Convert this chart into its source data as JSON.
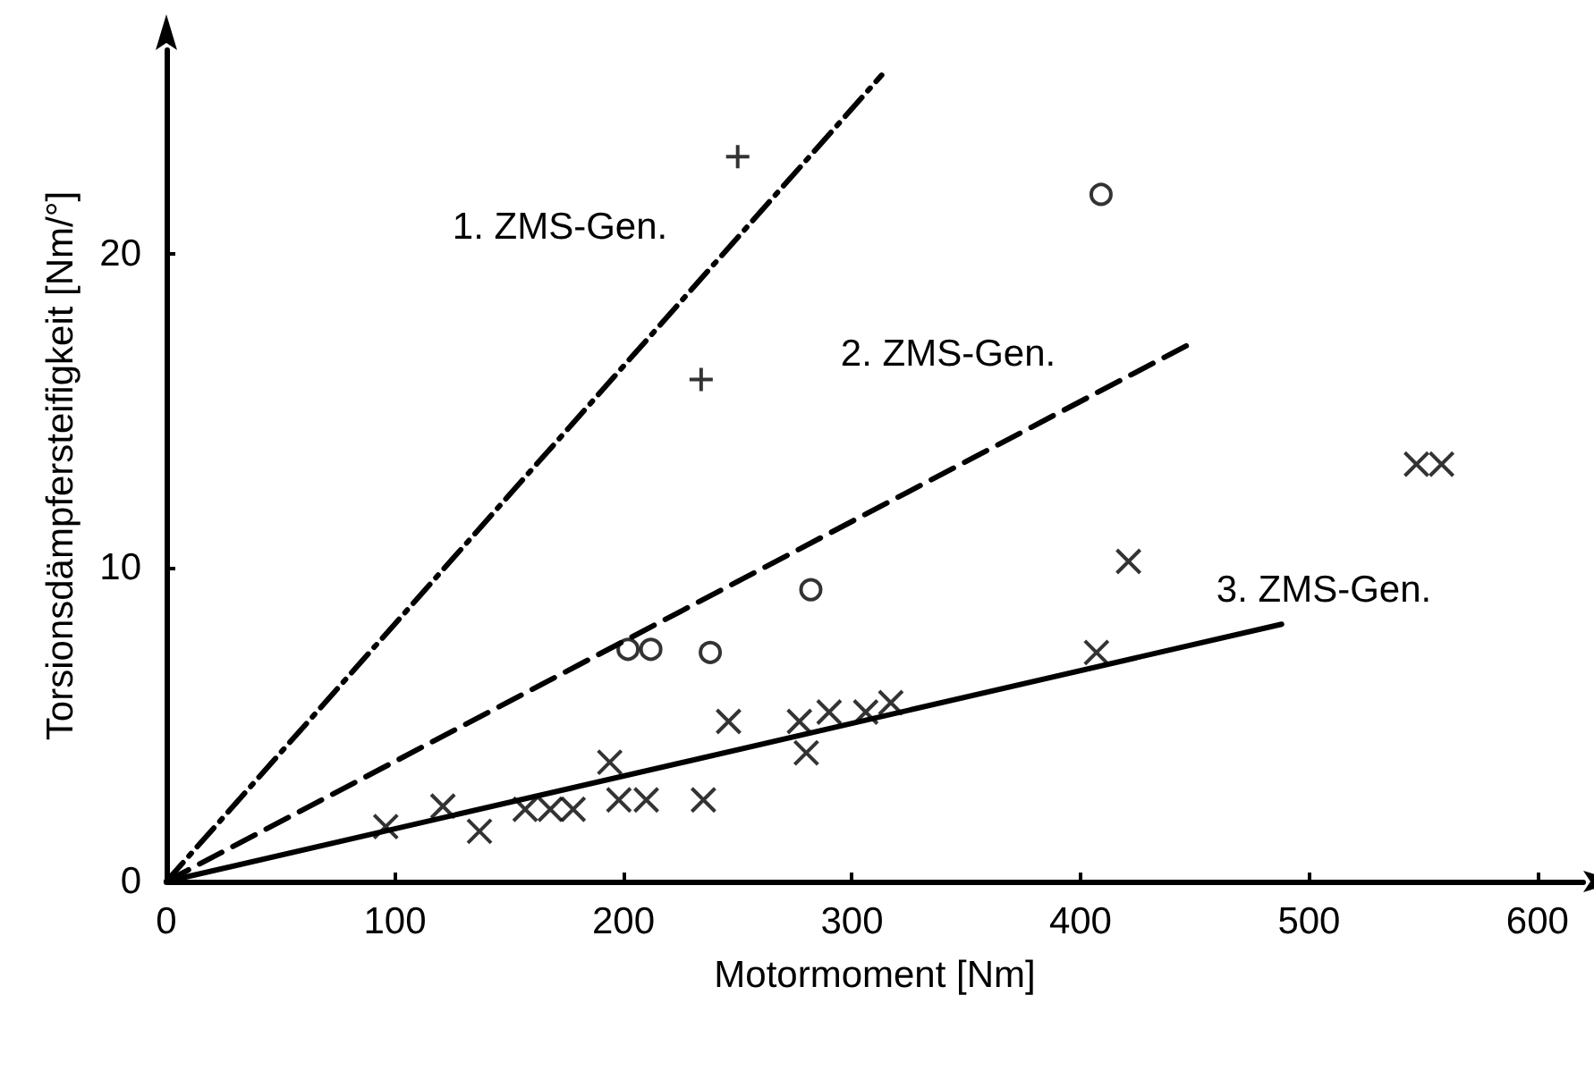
{
  "chart_data": {
    "type": "scatter",
    "xlabel": "Motormoment [Nm]",
    "ylabel": "Torsionsdämpfersteifigkeit [Nm/°]",
    "xlim": [
      0,
      620
    ],
    "ylim": [
      0,
      26.5
    ],
    "xticks": [
      0,
      100,
      200,
      300,
      400,
      500,
      600
    ],
    "yticks": [
      0,
      10,
      20
    ],
    "grid": false,
    "series": [
      {
        "type": "line",
        "color": "#000000",
        "line_style": "dashdot",
        "marker": "none",
        "x": [
          0,
          313
        ],
        "values": [
          0,
          25.7
        ]
      },
      {
        "type": "line",
        "color": "#000000",
        "line_style": "dashed",
        "marker": "none",
        "x": [
          0,
          447
        ],
        "values": [
          0,
          17.1
        ]
      },
      {
        "type": "line",
        "color": "#000000",
        "line_style": "solid",
        "marker": "none",
        "x": [
          0,
          488
        ],
        "values": [
          0,
          8.2
        ]
      },
      {
        "color": "#000000",
        "marker": "cross",
        "x": [
          250,
          234
        ],
        "values": [
          23.1,
          16.0
        ]
      },
      {
        "color": "#000000",
        "marker": "circle",
        "x": [
          409,
          282,
          202,
          212,
          238
        ],
        "values": [
          21.9,
          9.3,
          7.4,
          7.4,
          7.3
        ]
      },
      {
        "color": "#000000",
        "marker": "x",
        "x": [
          547,
          558,
          421,
          407,
          96,
          121,
          137,
          157,
          168,
          178,
          194,
          198,
          210,
          235,
          246,
          277,
          280,
          290,
          306,
          317
        ],
        "values": [
          13.3,
          13.3,
          10.2,
          7.3,
          1.75,
          2.4,
          1.6,
          2.3,
          2.3,
          2.3,
          3.8,
          2.6,
          2.6,
          2.6,
          5.1,
          5.1,
          4.1,
          5.4,
          5.4,
          5.7
        ]
      }
    ],
    "annotations": [
      "1. ZMS-Gen.",
      "2. ZMS-Gen.",
      "3. ZMS-Gen."
    ]
  }
}
